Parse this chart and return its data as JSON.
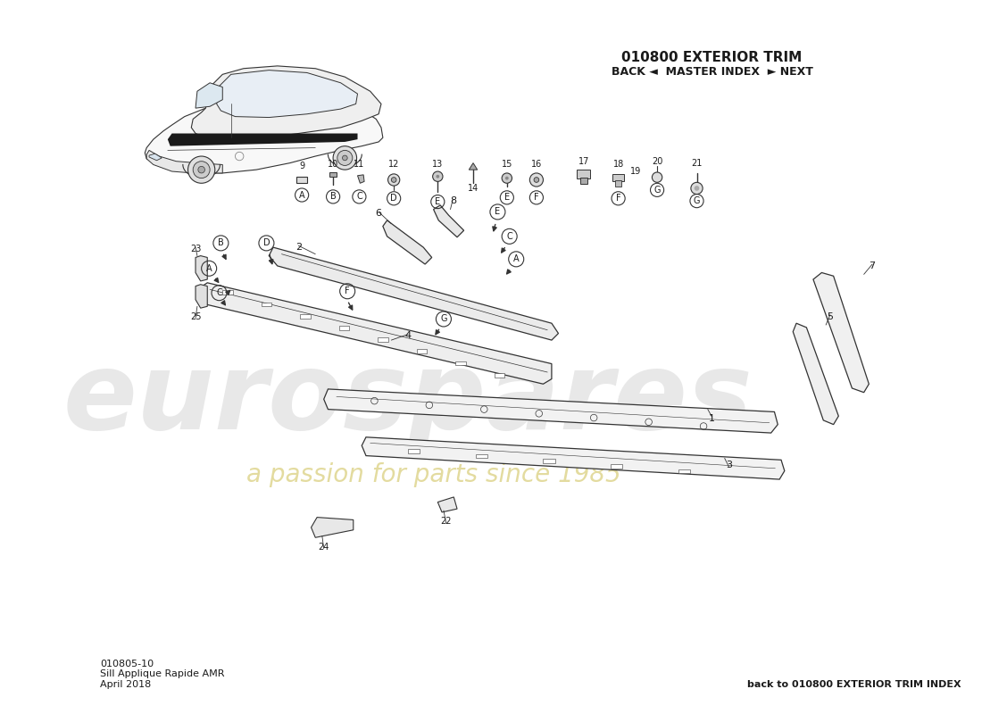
{
  "title_top_right": "010800 EXTERIOR TRIM",
  "nav_text": "BACK ◄  MASTER INDEX  ► NEXT",
  "bottom_left_line1": "010805-10",
  "bottom_left_line2": "Sill Applique Rapide AMR",
  "bottom_left_line3": "April 2018",
  "bottom_right": "back to 010800 EXTERIOR TRIM INDEX",
  "bg_color": "#ffffff",
  "text_color": "#1a1a1a",
  "line_color": "#333333"
}
